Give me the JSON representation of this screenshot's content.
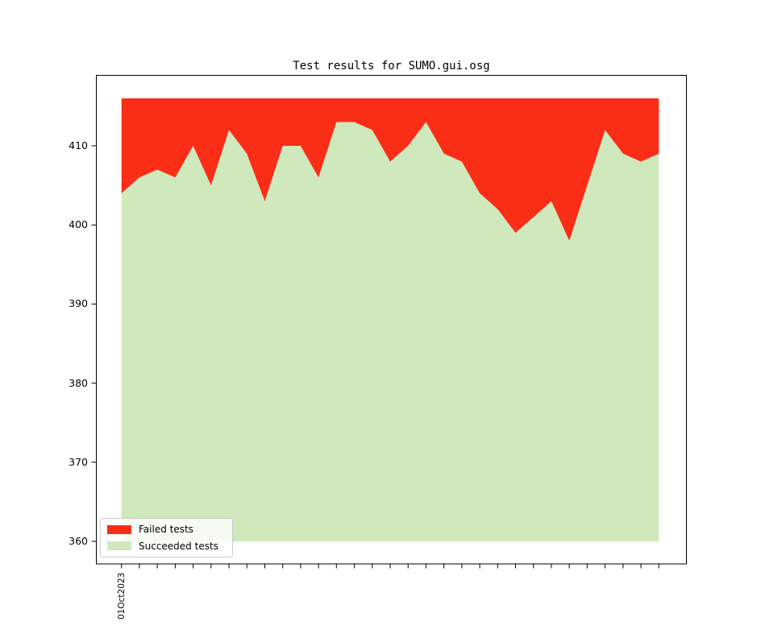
{
  "title": "Test results for SUMO.gui.osg",
  "chart_data": {
    "type": "area",
    "stacked": true,
    "title": "Test results for SUMO.gui.osg",
    "xlabel": "",
    "ylabel": "",
    "x_point_count": 31,
    "x_first_tick_label": "01Oct2023",
    "x_tick_labels_visible": [
      "01Oct2023"
    ],
    "total_tests": 416,
    "area_baseline": 360,
    "yticks": [
      360,
      370,
      380,
      390,
      400,
      410
    ],
    "ylim": [
      357.1,
      419.0
    ],
    "grid": false,
    "legend_position": "lower left",
    "legend_background": "rgba(255,255,255,0.8)",
    "legend_border_color": "#cccccc",
    "series": [
      {
        "name": "Failed tests",
        "color": "#fa2d16",
        "values": [
          12,
          10,
          9,
          10,
          6,
          11,
          4,
          7,
          13,
          6,
          6,
          10,
          3,
          3,
          4,
          8,
          6,
          3,
          7,
          8,
          12,
          14,
          17,
          15,
          13,
          18,
          11,
          4,
          7,
          8,
          7
        ]
      },
      {
        "name": "Succeeded tests",
        "color": "#cfe8bc",
        "values": [
          404,
          406,
          407,
          406,
          410,
          405,
          412,
          409,
          403,
          410,
          410,
          406,
          413,
          413,
          412,
          408,
          410,
          413,
          409,
          408,
          404,
          402,
          399,
          401,
          403,
          398,
          405,
          412,
          409,
          408,
          409
        ]
      }
    ]
  }
}
